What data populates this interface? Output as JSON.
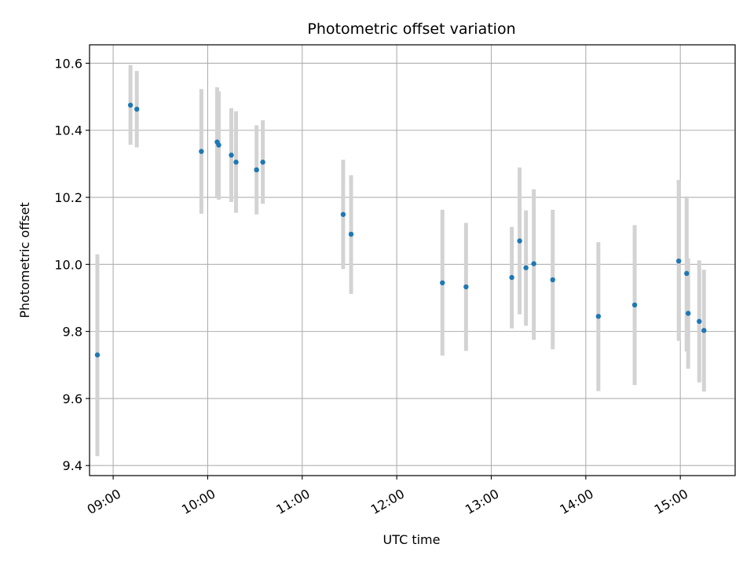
{
  "chart_data": {
    "type": "scatter",
    "title": "Photometric offset variation",
    "xlabel": "UTC time",
    "ylabel": "Photometric offset",
    "xlim": [
      8.75,
      15.58
    ],
    "ylim": [
      9.37,
      10.655
    ],
    "grid": true,
    "x_ticks": [
      9,
      10,
      11,
      12,
      13,
      14,
      15
    ],
    "x_tick_labels": [
      "09:00",
      "10:00",
      "11:00",
      "12:00",
      "13:00",
      "14:00",
      "15:00"
    ],
    "y_ticks": [
      9.4,
      9.6,
      9.8,
      10.0,
      10.2,
      10.4,
      10.6
    ],
    "y_tick_labels": [
      "9.4",
      "9.6",
      "9.8",
      "10.0",
      "10.2",
      "10.4",
      "10.6"
    ],
    "marker_color": "#1f77b4",
    "errorbar_color": "#d3d3d3",
    "points": [
      {
        "x": 8.833,
        "y": 9.73,
        "lo": 9.428,
        "hi": 10.03
      },
      {
        "x": 9.183,
        "y": 10.475,
        "lo": 10.357,
        "hi": 10.595
      },
      {
        "x": 9.25,
        "y": 10.463,
        "lo": 10.349,
        "hi": 10.577
      },
      {
        "x": 9.933,
        "y": 10.337,
        "lo": 10.151,
        "hi": 10.523
      },
      {
        "x": 10.1,
        "y": 10.365,
        "lo": 10.2,
        "hi": 10.528
      },
      {
        "x": 10.117,
        "y": 10.356,
        "lo": 10.193,
        "hi": 10.516
      },
      {
        "x": 10.25,
        "y": 10.326,
        "lo": 10.186,
        "hi": 10.466
      },
      {
        "x": 10.3,
        "y": 10.305,
        "lo": 10.154,
        "hi": 10.457
      },
      {
        "x": 10.517,
        "y": 10.282,
        "lo": 10.149,
        "hi": 10.415
      },
      {
        "x": 10.583,
        "y": 10.305,
        "lo": 10.181,
        "hi": 10.43
      },
      {
        "x": 11.433,
        "y": 10.149,
        "lo": 9.986,
        "hi": 10.312
      },
      {
        "x": 11.517,
        "y": 10.09,
        "lo": 9.912,
        "hi": 10.266
      },
      {
        "x": 12.483,
        "y": 9.945,
        "lo": 9.728,
        "hi": 10.163
      },
      {
        "x": 12.733,
        "y": 9.933,
        "lo": 9.742,
        "hi": 10.124
      },
      {
        "x": 13.217,
        "y": 9.961,
        "lo": 9.809,
        "hi": 10.112
      },
      {
        "x": 13.3,
        "y": 10.07,
        "lo": 9.851,
        "hi": 10.289
      },
      {
        "x": 13.367,
        "y": 9.99,
        "lo": 9.817,
        "hi": 10.161
      },
      {
        "x": 13.45,
        "y": 10.002,
        "lo": 9.775,
        "hi": 10.224
      },
      {
        "x": 13.65,
        "y": 9.954,
        "lo": 9.747,
        "hi": 10.163
      },
      {
        "x": 14.133,
        "y": 9.845,
        "lo": 9.622,
        "hi": 10.066
      },
      {
        "x": 14.517,
        "y": 9.879,
        "lo": 9.64,
        "hi": 10.117
      },
      {
        "x": 14.983,
        "y": 10.01,
        "lo": 9.772,
        "hi": 10.252
      },
      {
        "x": 15.067,
        "y": 9.973,
        "lo": 9.74,
        "hi": 10.203
      },
      {
        "x": 15.083,
        "y": 9.854,
        "lo": 9.689,
        "hi": 10.018
      },
      {
        "x": 15.2,
        "y": 9.83,
        "lo": 9.648,
        "hi": 10.012
      },
      {
        "x": 15.25,
        "y": 9.803,
        "lo": 9.621,
        "hi": 9.984
      }
    ]
  }
}
